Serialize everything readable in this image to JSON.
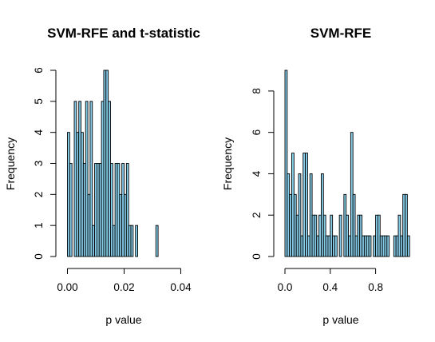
{
  "colors": {
    "bar_fill": "#87CEEB",
    "bar_edge": "#000000",
    "axis": "#000000",
    "background": "#ffffff"
  },
  "chart_data": [
    {
      "type": "bar",
      "subtype": "histogram",
      "title": "SVM-RFE and t-statistic",
      "xlabel": "p value",
      "ylabel": "Frequency",
      "xlim": [
        0,
        0.04
      ],
      "ylim": [
        0,
        6
      ],
      "xticks": [
        0.0,
        0.02,
        0.04
      ],
      "xtick_labels": [
        "0.00",
        "0.02",
        "0.04"
      ],
      "yticks": [
        0,
        1,
        2,
        3,
        4,
        5,
        6
      ],
      "ytick_labels": [
        "0",
        "1",
        "2",
        "3",
        "4",
        "5",
        "6"
      ],
      "grid": false,
      "bin_width": 0.0008,
      "bin_start": 0.0,
      "values": [
        4,
        3,
        0,
        5,
        4,
        5,
        4,
        3,
        5,
        2,
        5,
        1,
        3,
        3,
        3,
        5,
        6,
        6,
        5,
        3,
        1,
        3,
        3,
        2,
        3,
        2,
        3,
        1,
        1,
        0,
        1,
        0,
        0,
        0,
        0,
        0,
        0,
        0,
        0,
        1
      ]
    },
    {
      "type": "bar",
      "subtype": "histogram",
      "title": "SVM-RFE",
      "xlabel": "p value",
      "ylabel": "Frequency",
      "xlim": [
        0,
        1
      ],
      "ylim": [
        0,
        9
      ],
      "xticks": [
        0.0,
        0.4,
        0.8
      ],
      "xtick_labels": [
        "0.0",
        "0.4",
        "0.8"
      ],
      "yticks": [
        0,
        2,
        4,
        6,
        8
      ],
      "ytick_labels": [
        "0",
        "2",
        "4",
        "6",
        "8"
      ],
      "grid": false,
      "bin_width": 0.02,
      "bin_start": 0.0,
      "values": [
        9,
        4,
        3,
        5,
        3,
        2,
        4,
        1,
        5,
        5,
        1,
        4,
        2,
        2,
        1,
        2,
        4,
        2,
        1,
        1,
        2,
        1,
        1,
        0,
        2,
        0,
        3,
        2,
        1,
        6,
        3,
        1,
        2,
        2,
        1,
        1,
        1,
        1,
        0,
        1,
        2,
        2,
        1,
        1,
        1,
        1,
        0,
        0,
        1,
        1,
        2,
        1,
        3,
        3,
        1
      ]
    }
  ]
}
